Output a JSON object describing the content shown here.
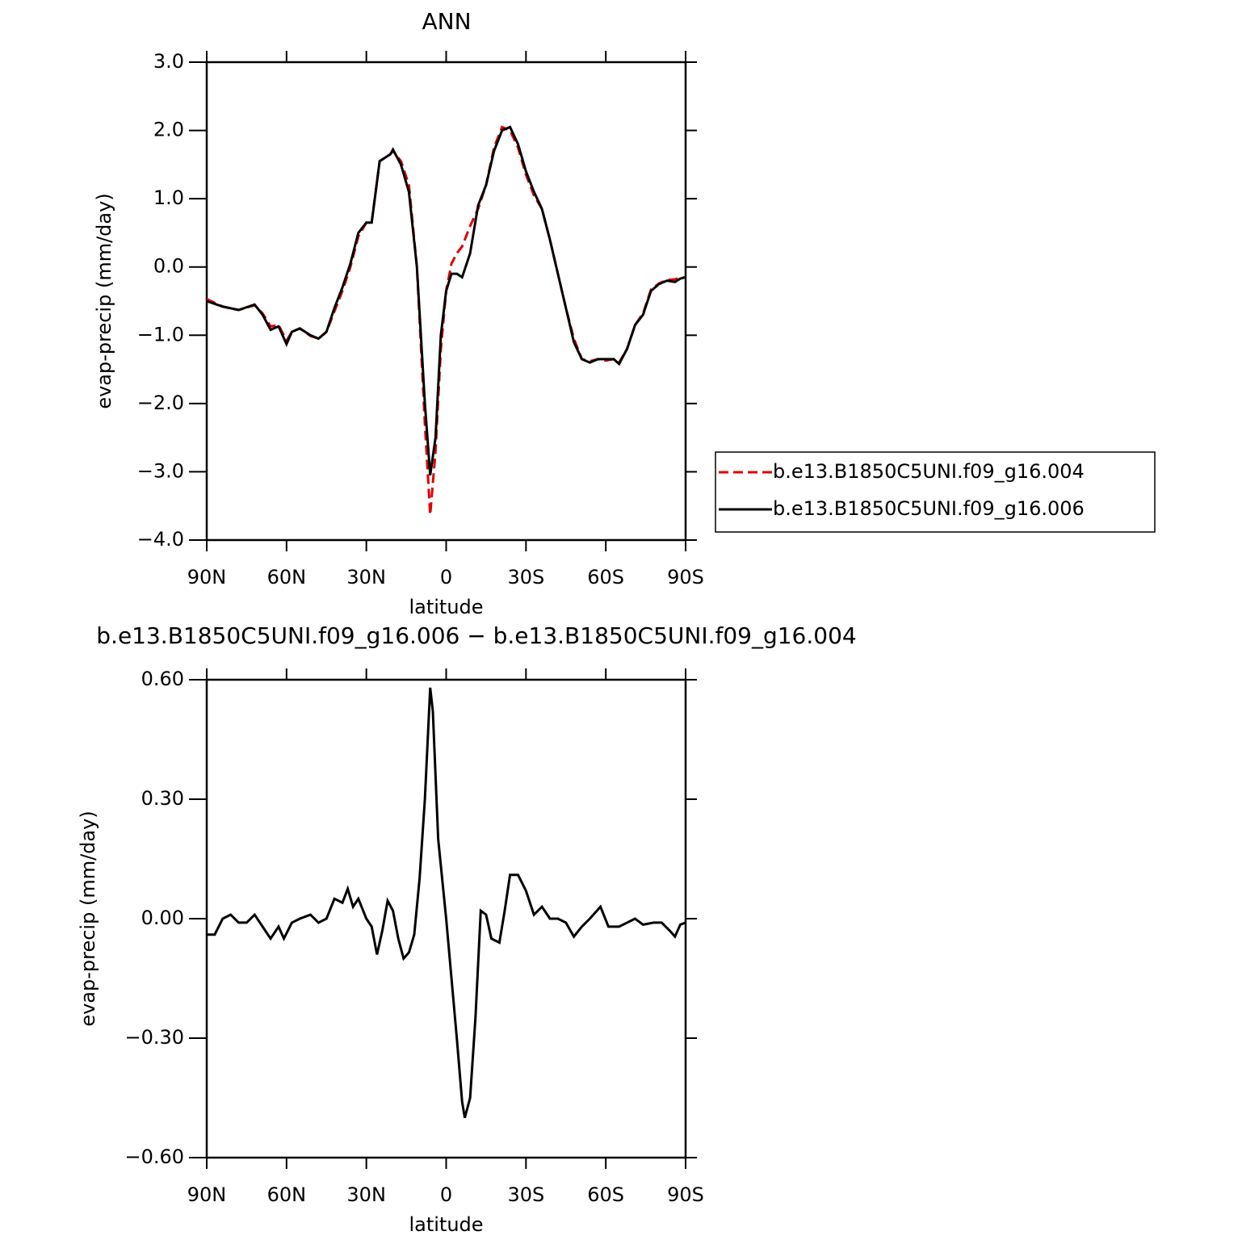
{
  "chart_data": [
    {
      "type": "line",
      "title": "ANN",
      "xlabel": "latitude",
      "ylabel": "evap-precip (mm/day)",
      "x": [
        90,
        84,
        78,
        72,
        69,
        66,
        63,
        60,
        58,
        55,
        51,
        48,
        45,
        42,
        39,
        36,
        33,
        30,
        28,
        25,
        21,
        20,
        17,
        14,
        11,
        8,
        6,
        4,
        2,
        0,
        -2,
        -4,
        -6,
        -9,
        -12,
        -15,
        -18,
        -21,
        -24,
        -27,
        -30,
        -33,
        -36,
        -39,
        -42,
        -45,
        -48,
        -51,
        -54,
        -57,
        -60,
        -63,
        -65,
        -68,
        -71,
        -74,
        -77,
        -80,
        -83,
        -86,
        -88,
        -90
      ],
      "series": [
        {
          "name": "b.e13.B1850C5UNI.f09_g16.004",
          "color": "#e00000",
          "linestyle": "dashed",
          "values": [
            -0.47,
            -0.58,
            -0.63,
            -0.56,
            -0.68,
            -0.87,
            -0.85,
            -1.08,
            -0.95,
            -0.9,
            -1.01,
            -1.05,
            -0.95,
            -0.65,
            -0.35,
            0.0,
            0.45,
            0.65,
            0.65,
            1.55,
            1.65,
            1.7,
            1.55,
            1.2,
            0.0,
            -2.3,
            -3.63,
            -2.7,
            -1.2,
            -0.35,
            0.05,
            0.2,
            0.3,
            0.6,
            0.85,
            1.2,
            1.75,
            2.05,
            2.0,
            1.75,
            1.35,
            1.05,
            0.85,
            0.4,
            -0.1,
            -0.6,
            -1.05,
            -1.35,
            -1.38,
            -1.35,
            -1.37,
            -1.35,
            -1.4,
            -1.2,
            -0.85,
            -0.68,
            -0.33,
            -0.24,
            -0.19,
            -0.18,
            -0.16,
            -0.15
          ]
        },
        {
          "name": "b.e13.B1850C5UNI.f09_g16.006",
          "color": "#000000",
          "linestyle": "solid",
          "values": [
            -0.5,
            -0.58,
            -0.63,
            -0.55,
            -0.7,
            -0.92,
            -0.87,
            -1.13,
            -0.95,
            -0.9,
            -1.0,
            -1.05,
            -0.95,
            -0.6,
            -0.3,
            0.05,
            0.5,
            0.65,
            0.65,
            1.55,
            1.65,
            1.72,
            1.5,
            1.1,
            0.0,
            -2.0,
            -3.05,
            -2.5,
            -1.0,
            -0.35,
            -0.1,
            -0.1,
            -0.15,
            0.2,
            0.9,
            1.2,
            1.7,
            2.0,
            2.05,
            1.8,
            1.4,
            1.1,
            0.85,
            0.4,
            -0.1,
            -0.6,
            -1.1,
            -1.35,
            -1.4,
            -1.35,
            -1.35,
            -1.35,
            -1.42,
            -1.2,
            -0.85,
            -0.7,
            -0.35,
            -0.25,
            -0.2,
            -0.22,
            -0.17,
            -0.15
          ]
        }
      ],
      "xlim": [
        90,
        -90
      ],
      "ylim": [
        -4,
        3
      ],
      "xticks": [
        {
          "value": 90,
          "label": "90N"
        },
        {
          "value": 60,
          "label": "60N"
        },
        {
          "value": 30,
          "label": "30N"
        },
        0,
        {
          "value": -30,
          "label": "30S"
        },
        {
          "value": -60,
          "label": "60S"
        },
        {
          "value": -90,
          "label": "90S"
        }
      ],
      "yticks": [
        {
          "value": -4,
          "label": "−4.0"
        },
        {
          "value": -3,
          "label": "−3.0"
        },
        {
          "value": -2,
          "label": "−2.0"
        },
        {
          "value": -1,
          "label": "−1.0"
        },
        {
          "value": 0,
          "label": "0.0"
        },
        {
          "value": 1,
          "label": "1.0"
        },
        {
          "value": 2,
          "label": "2.0"
        },
        {
          "value": 3,
          "label": "3.0"
        }
      ],
      "legend": "right"
    },
    {
      "type": "line",
      "title": "b.e13.B1850C5UNI.f09_g16.006 − b.e13.B1850C5UNI.f09_g16.004",
      "xlabel": "latitude",
      "ylabel": "evap-precip (mm/day)",
      "x": [
        90,
        87,
        84,
        81,
        78,
        75,
        72,
        69,
        66,
        63,
        61,
        58,
        55,
        51,
        48,
        45,
        42,
        39,
        37,
        35,
        33,
        30,
        28,
        26,
        24,
        22,
        20,
        18,
        16,
        14,
        12,
        10,
        8,
        6,
        5,
        3,
        0,
        -2,
        -4,
        -6,
        -7,
        -9,
        -11,
        -13,
        -15,
        -17,
        -20,
        -22,
        -24,
        -27,
        -30,
        -33,
        -36,
        -39,
        -42,
        -45,
        -48,
        -51,
        -54,
        -58,
        -61,
        -65,
        -68,
        -71,
        -74,
        -78,
        -81,
        -84,
        -86,
        -88,
        -90
      ],
      "series": [
        {
          "color": "#000000",
          "linestyle": "solid",
          "values": [
            -0.04,
            -0.04,
            0.0,
            0.01,
            -0.01,
            -0.01,
            0.01,
            -0.02,
            -0.05,
            -0.02,
            -0.05,
            -0.01,
            0.0,
            0.01,
            -0.01,
            0.0,
            0.05,
            0.04,
            0.075,
            0.03,
            0.05,
            0.0,
            -0.02,
            -0.09,
            -0.03,
            0.045,
            0.02,
            -0.05,
            -0.1,
            -0.085,
            -0.04,
            0.1,
            0.3,
            0.58,
            0.52,
            0.2,
            0.0,
            -0.15,
            -0.3,
            -0.46,
            -0.5,
            -0.45,
            -0.25,
            0.02,
            0.01,
            -0.05,
            -0.06,
            0.02,
            0.11,
            0.11,
            0.07,
            0.01,
            0.03,
            0.0,
            0.0,
            -0.01,
            -0.045,
            -0.02,
            0.0,
            0.03,
            -0.02,
            -0.02,
            -0.01,
            0.0,
            -0.015,
            -0.01,
            -0.01,
            -0.03,
            -0.045,
            -0.015,
            -0.01
          ]
        }
      ],
      "xlim": [
        90,
        -90
      ],
      "ylim": [
        -0.6,
        0.6
      ],
      "xticks": [
        {
          "value": 90,
          "label": "90N"
        },
        {
          "value": 60,
          "label": "60N"
        },
        {
          "value": 30,
          "label": "30N"
        },
        0,
        {
          "value": -30,
          "label": "30S"
        },
        {
          "value": -60,
          "label": "60S"
        },
        {
          "value": -90,
          "label": "90S"
        }
      ],
      "yticks": [
        {
          "value": -0.6,
          "label": "−0.60"
        },
        {
          "value": -0.3,
          "label": "−0.30"
        },
        {
          "value": 0,
          "label": "0.00"
        },
        {
          "value": 0.3,
          "label": "0.30"
        },
        {
          "value": 0.6,
          "label": "0.60"
        }
      ]
    }
  ]
}
